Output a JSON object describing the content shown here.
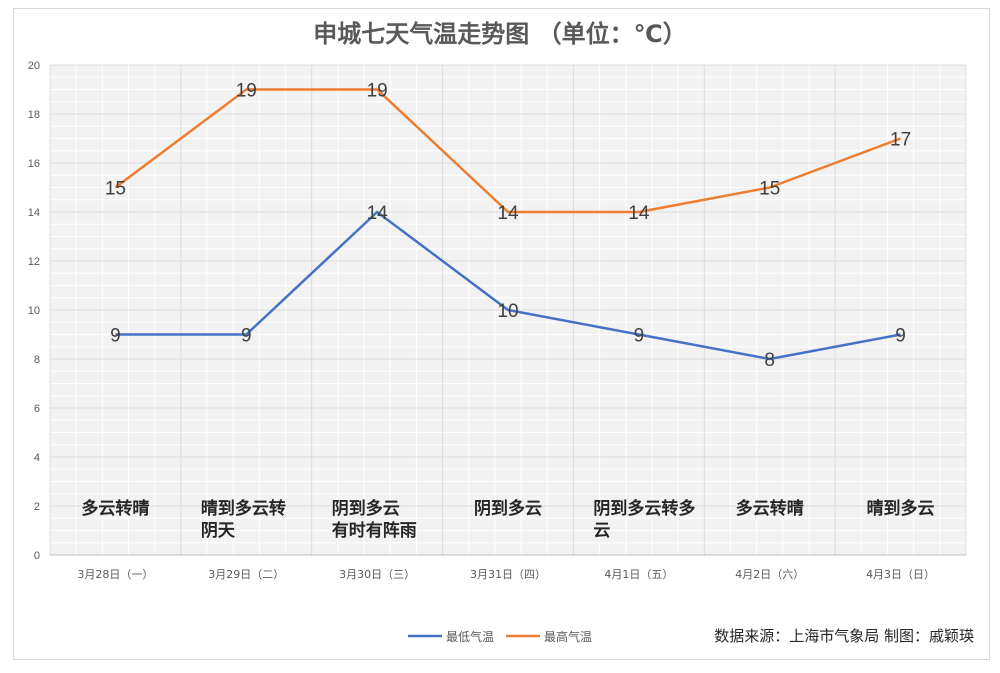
{
  "chart_data": {
    "type": "line",
    "title": "申城七天气温走势图  （单位：℃）",
    "categories": [
      "3月28日（一）",
      "3月29日（二）",
      "3月30日（三）",
      "3月31日（四）",
      "4月1日（五）",
      "4月2日（六）",
      "4月3日（日）"
    ],
    "weather": [
      [
        "多云转晴"
      ],
      [
        "晴到多云转",
        "阴天"
      ],
      [
        "阴到多云",
        "有时有阵雨"
      ],
      [
        "阴到多云"
      ],
      [
        "阴到多云转多",
        "云"
      ],
      [
        "多云转晴"
      ],
      [
        "晴到多云"
      ]
    ],
    "series": [
      {
        "name": "最低气温",
        "color": "#4472c4",
        "values": [
          9,
          9,
          14,
          10,
          9,
          8,
          9
        ]
      },
      {
        "name": "最高气温",
        "color": "#ed7d31",
        "values": [
          15,
          19,
          19,
          14,
          14,
          15,
          17
        ]
      }
    ],
    "ylim": [
      0,
      20
    ],
    "yticks": [
      0,
      2,
      4,
      6,
      8,
      10,
      12,
      14,
      16,
      18,
      20
    ],
    "grid": true,
    "legend": "bottom"
  },
  "credit": "数据来源：上海市气象局  制图：戚颖瑛"
}
